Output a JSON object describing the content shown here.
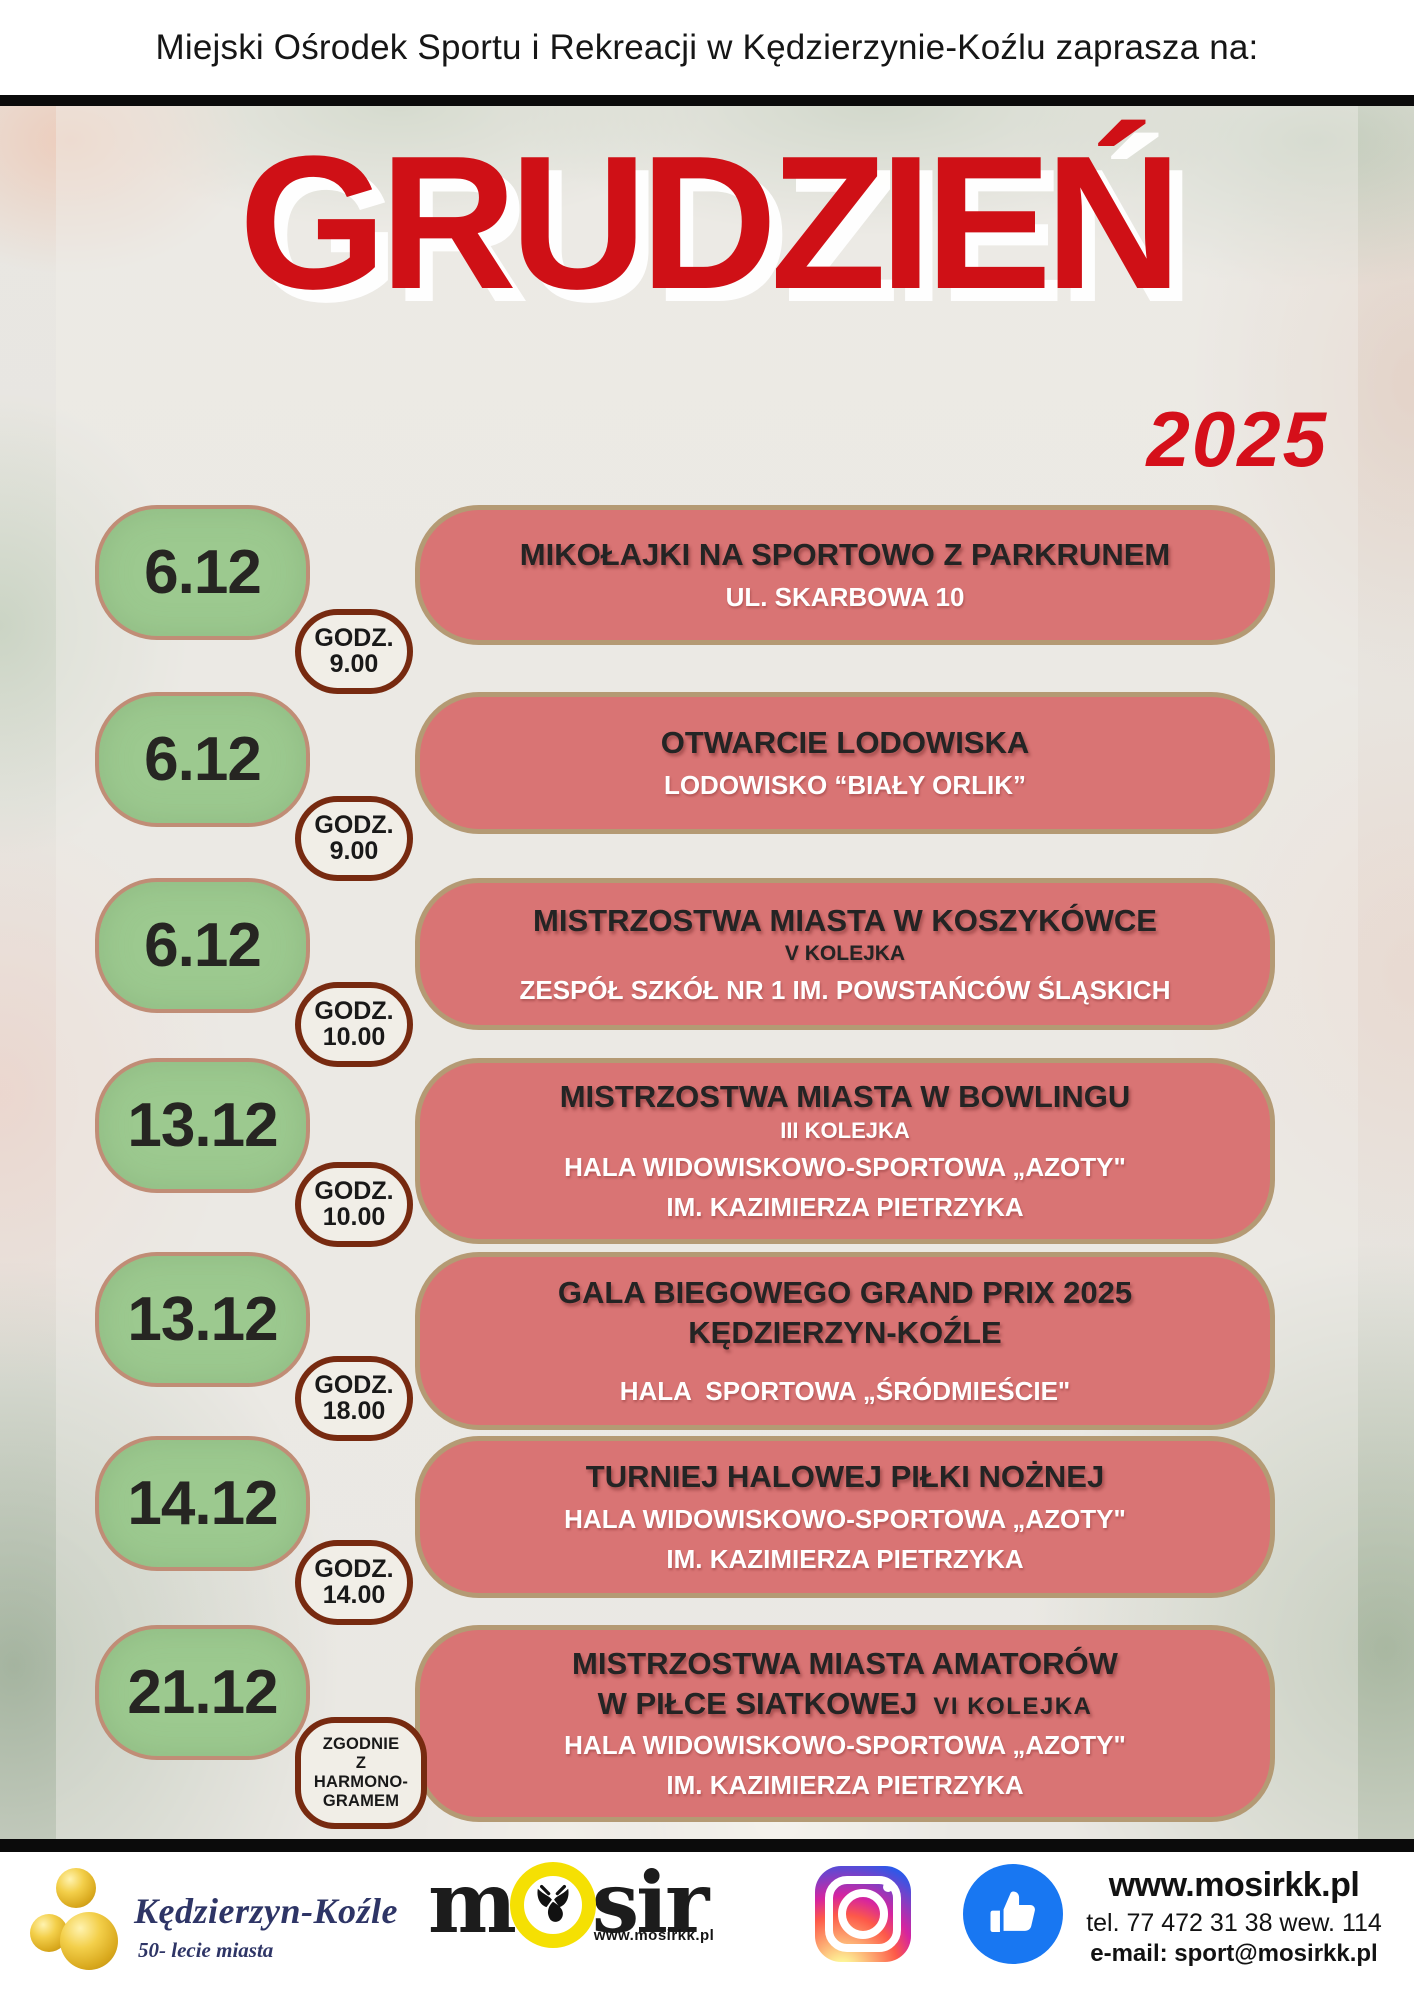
{
  "banner": {
    "text": "Miejski Ośrodek Sportu i Rekreacji w Kędzierzynie-Koźlu zaprasza na:"
  },
  "poster": {
    "month": "GRUDZIEŃ",
    "year": "2025"
  },
  "events": [
    {
      "date": "6.12",
      "time_lines": [
        "GODZ.",
        "9.00"
      ],
      "title_lines": [
        "MIKOŁAJKI NA SPORTOWO Z PARKRUNEM"
      ],
      "details": [
        {
          "text": "UL. SKARBOWA 10",
          "tone": "light"
        }
      ]
    },
    {
      "date": "6.12",
      "time_lines": [
        "GODZ.",
        "9.00"
      ],
      "title_lines": [
        "OTWARCIE LODOWISKA"
      ],
      "details": [
        {
          "text": "LODOWISKO “BIAŁY ORLIK”",
          "tone": "light"
        }
      ]
    },
    {
      "date": "6.12",
      "time_lines": [
        "GODZ.",
        "10.00"
      ],
      "title_lines": [
        "MISTRZOSTWA MIASTA W KOSZYKÓWCE"
      ],
      "details": [
        {
          "text": "V KOLEJKA",
          "tone": "dark",
          "small": true
        },
        {
          "text": "ZESPÓŁ SZKÓŁ NR 1 IM. POWSTAŃCÓW ŚLĄSKICH",
          "tone": "light"
        }
      ]
    },
    {
      "date": "13.12",
      "time_lines": [
        "GODZ.",
        "10.00"
      ],
      "title_lines": [
        "MISTRZOSTWA MIASTA W BOWLINGU"
      ],
      "details": [
        {
          "text": "III KOLEJKA",
          "tone": "light",
          "small": true
        },
        {
          "text": "HALA WIDOWISKOWO-SPORTOWA „AZOTY\"",
          "tone": "light"
        },
        {
          "text": "IM. KAZIMIERZA PIETRZYKA",
          "tone": "light"
        }
      ]
    },
    {
      "date": "13.12",
      "time_lines": [
        "GODZ.",
        "18.00"
      ],
      "title_lines": [
        "GALA BIEGOWEGO GRAND PRIX 2025",
        "KĘDZIERZYN-KOŹLE"
      ],
      "details": [
        {
          "text": "HALA  SPORTOWA „ŚRÓDMIEŚCIE\"",
          "tone": "light",
          "gap": true
        }
      ]
    },
    {
      "date": "14.12",
      "time_lines": [
        "GODZ.",
        "14.00"
      ],
      "title_lines": [
        "TURNIEJ HALOWEJ PIŁKI NOŻNEJ"
      ],
      "details": [
        {
          "text": "HALA WIDOWISKOWO-SPORTOWA „AZOTY\"",
          "tone": "light"
        },
        {
          "text": "IM. KAZIMIERZA PIETRZYKA",
          "tone": "light"
        }
      ]
    },
    {
      "date": "21.12",
      "time_lines": [
        "ZGODNIE",
        "Z",
        "HARMONO-",
        "GRAMEM"
      ],
      "time_small": true,
      "title_lines": [
        "MISTRZOSTWA MIASTA AMATORÓW",
        "W PIŁCE SIATKOWEJ"
      ],
      "title_suffix": "VI KOLEJKA",
      "details": [
        {
          "text": "HALA WIDOWISKOWO-SPORTOWA „AZOTY\"",
          "tone": "light"
        },
        {
          "text": "IM. KAZIMIERZA PIETRZYKA",
          "tone": "light"
        }
      ]
    }
  ],
  "footer": {
    "city_logo": {
      "name": "Kędzierzyn-Koźle",
      "subtitle": "50- lecie miasta"
    },
    "mosir_logo": {
      "prefix": "m",
      "suffix": "sir",
      "url": "www.mosirkk.pl"
    },
    "contact": {
      "website": "www.mosirkk.pl",
      "phone": "tel. 77 472 31 38 wew. 114",
      "email": "e-mail: sport@mosirkk.pl"
    }
  },
  "colors": {
    "title_red": "#cf1016",
    "date_green": "#9cc98f",
    "card_red": "#d97474",
    "card_border": "#b49a74",
    "badge_border": "#772a10",
    "navy": "#2e3566",
    "mosir_yellow": "#f5e003",
    "facebook_blue": "#1877f2"
  }
}
